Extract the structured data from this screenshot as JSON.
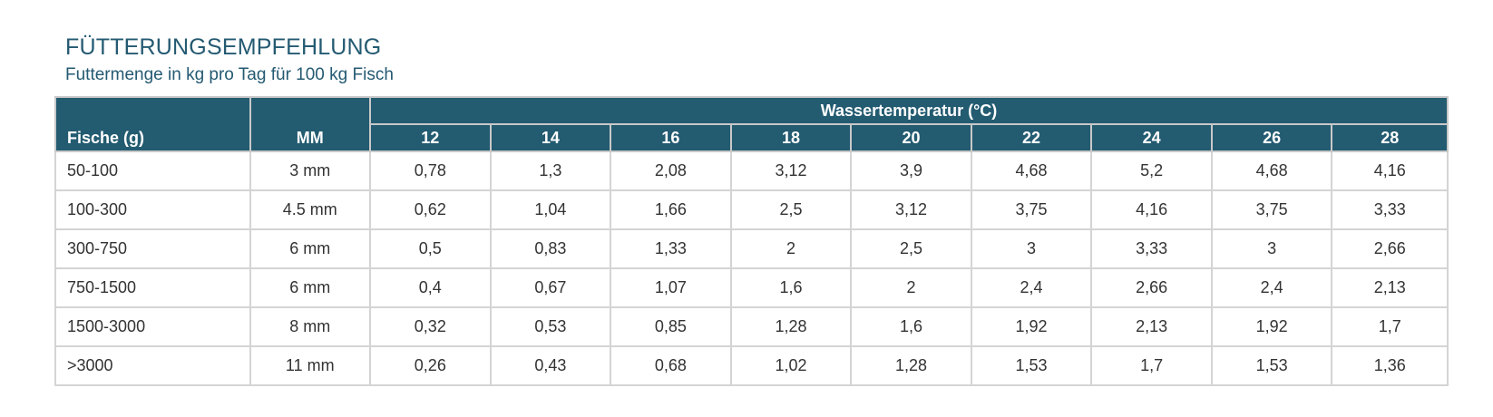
{
  "title": "FÜTTERUNGSEMPFEHLUNG",
  "subtitle": "Futtermenge in kg pro Tag für 100 kg Fisch",
  "table": {
    "col_fish": "Fische (g)",
    "col_mm": "MM",
    "group_header": "Wassertemperatur (°C)",
    "temps": [
      "12",
      "14",
      "16",
      "18",
      "20",
      "22",
      "24",
      "26",
      "28"
    ],
    "rows": [
      {
        "fish": "50-100",
        "mm": "3 mm",
        "values": [
          "0,78",
          "1,3",
          "2,08",
          "3,12",
          "3,9",
          "4,68",
          "5,2",
          "4,68",
          "4,16"
        ]
      },
      {
        "fish": "100-300",
        "mm": "4.5 mm",
        "values": [
          "0,62",
          "1,04",
          "1,66",
          "2,5",
          "3,12",
          "3,75",
          "4,16",
          "3,75",
          "3,33"
        ]
      },
      {
        "fish": "300-750",
        "mm": "6 mm",
        "values": [
          "0,5",
          "0,83",
          "1,33",
          "2",
          "2,5",
          "3",
          "3,33",
          "3",
          "2,66"
        ]
      },
      {
        "fish": "750-1500",
        "mm": "6 mm",
        "values": [
          "0,4",
          "0,67",
          "1,07",
          "1,6",
          "2",
          "2,4",
          "2,66",
          "2,4",
          "2,13"
        ]
      },
      {
        "fish": "1500-3000",
        "mm": "8 mm",
        "values": [
          "0,32",
          "0,53",
          "0,85",
          "1,28",
          "1,6",
          "1,92",
          "2,13",
          "1,92",
          "1,7"
        ]
      },
      {
        "fish": ">3000",
        "mm": "11 mm",
        "values": [
          "0,26",
          "0,43",
          "0,68",
          "1,02",
          "1,28",
          "1,53",
          "1,7",
          "1,53",
          "1,36"
        ]
      }
    ]
  },
  "colors": {
    "header_bg": "#235b71",
    "title": "#245a72",
    "grid": "#d4d4d4"
  }
}
